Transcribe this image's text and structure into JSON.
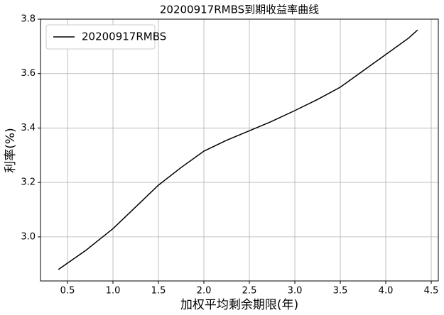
{
  "chart_data": {
    "type": "line",
    "title": "20200917RMBS到期收益率曲线",
    "x_label": "加权平均剩余期限(年)",
    "y_label": "利率(%)",
    "x": [
      0.4,
      0.7,
      1.0,
      1.25,
      1.5,
      1.75,
      2.0,
      2.25,
      2.5,
      2.75,
      3.0,
      3.25,
      3.5,
      3.75,
      4.0,
      4.25,
      4.35
    ],
    "series": [
      {
        "name": "20200917RMBS",
        "color": "#000000",
        "values": [
          2.88,
          2.95,
          3.03,
          3.11,
          3.19,
          3.255,
          3.315,
          3.355,
          3.39,
          3.425,
          3.464,
          3.505,
          3.55,
          3.61,
          3.67,
          3.73,
          3.76
        ]
      }
    ],
    "xlim": [
      0.203,
      4.578
    ],
    "ylim": [
      2.838,
      3.8
    ],
    "xticks": [
      0.5,
      {
        "value": 1.0,
        "label": "1.0"
      },
      1.5,
      {
        "value": 2.0,
        "label": "2.0"
      },
      2.5,
      {
        "value": 3.0,
        "label": "3.0"
      },
      3.5,
      {
        "value": 4.0,
        "label": "4.0"
      },
      4.5
    ],
    "yticks": [
      {
        "value": 3.0,
        "label": "3.0"
      },
      3.2,
      3.4,
      3.6,
      3.8
    ],
    "grid": true,
    "legend": "upper-left"
  }
}
